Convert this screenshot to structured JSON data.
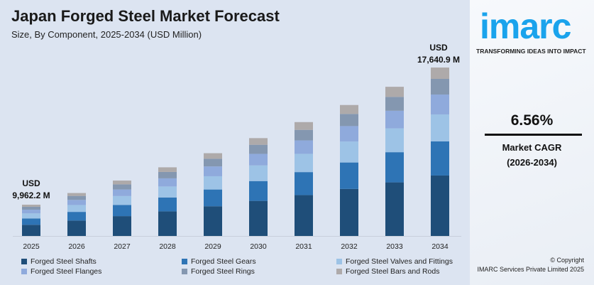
{
  "chart_data": {
    "type": "bar",
    "stacked": true,
    "title": "Japan Forged Steel Market Forecast",
    "subtitle": "Size, By Component, 2025-2034 (USD Million)",
    "categories": [
      "2025",
      "2026",
      "2027",
      "2028",
      "2029",
      "2030",
      "2031",
      "2032",
      "2033",
      "2034"
    ],
    "totals": [
      9962.2,
      10616,
      11312,
      12054,
      12845,
      13688,
      14586,
      15543,
      16562,
      17640.9
    ],
    "series": [
      {
        "name": "Forged Steel Shafts",
        "color": "#1f4e79",
        "values": [
          3560,
          3800,
          4050,
          4320,
          4610,
          4910,
          5230,
          5580,
          5950,
          6330
        ]
      },
      {
        "name": "Forged Steel Gears",
        "color": "#2e74b5",
        "values": [
          2020,
          2150,
          2290,
          2440,
          2600,
          2770,
          2950,
          3140,
          3350,
          3570
        ]
      },
      {
        "name": "Forged Steel Valves and Fittings",
        "color": "#9dc3e6",
        "values": [
          1600,
          1700,
          1810,
          1930,
          2060,
          2190,
          2340,
          2490,
          2650,
          2830
        ]
      },
      {
        "name": "Forged Steel Flanges",
        "color": "#8faadc",
        "values": [
          1180,
          1260,
          1340,
          1430,
          1520,
          1620,
          1720,
          1830,
          1950,
          2080
        ]
      },
      {
        "name": "Forged Steel Rings",
        "color": "#8497b0",
        "values": [
          930,
          990,
          1050,
          1120,
          1190,
          1270,
          1350,
          1440,
          1540,
          1640
        ]
      },
      {
        "name": "Forged Steel Bars and Rods",
        "color": "#aeaaaa",
        "values": [
          672.2,
          716,
          772,
          814,
          865,
          928,
          996,
          1063,
          1122,
          1190.9
        ]
      }
    ],
    "annotations": {
      "first": [
        "USD",
        "9,962.2 M"
      ],
      "last": [
        "USD",
        "17,640.9 M"
      ]
    },
    "grid": false,
    "legend": "bottom"
  },
  "brand": {
    "logo": "imarc",
    "tagline": "TRANSFORMING IDEAS INTO IMPACT"
  },
  "cagr": {
    "value": "6.56%",
    "label": "Market CAGR",
    "period": "(2026-2034)"
  },
  "footer": {
    "copyright": "© Copyright",
    "company": "IMARC Services Private Limited 2025"
  }
}
